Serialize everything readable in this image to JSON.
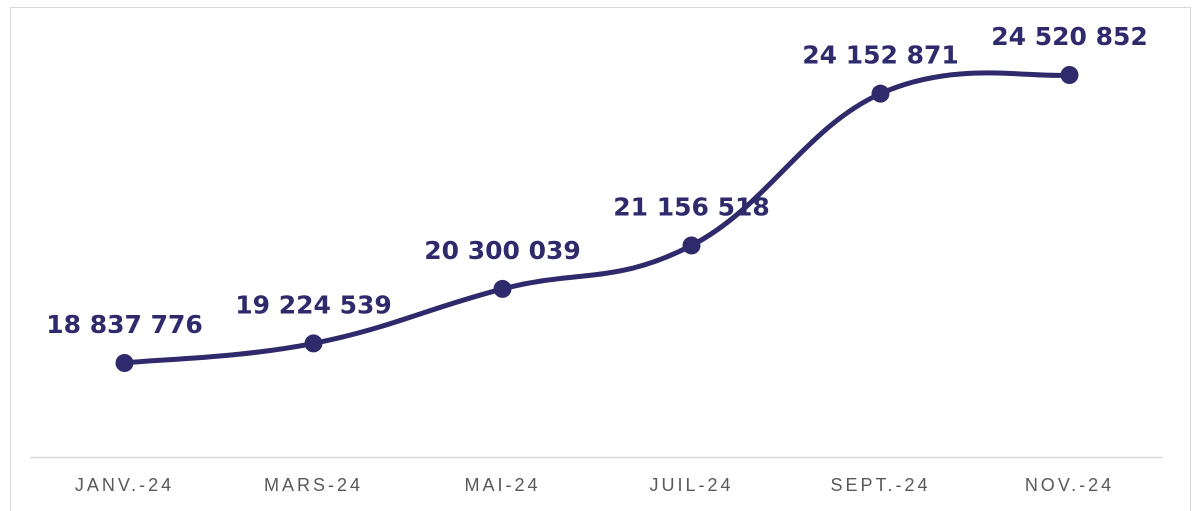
{
  "chart_data": {
    "type": "line",
    "categories": [
      "JANV.-24",
      "MARS-24",
      "MAI-24",
      "JUIL-24",
      "SEPT.-24",
      "NOV.-24"
    ],
    "series": [
      {
        "color": "#2e2a6b",
        "values": [
          18837776,
          19224539,
          20300039,
          21156518,
          24152871,
          24520852
        ],
        "value_labels": [
          "18 837 776",
          "19 224 539",
          "20 300 039",
          "21 156 518",
          "24 152 871",
          "24 520 852"
        ]
      }
    ]
  }
}
